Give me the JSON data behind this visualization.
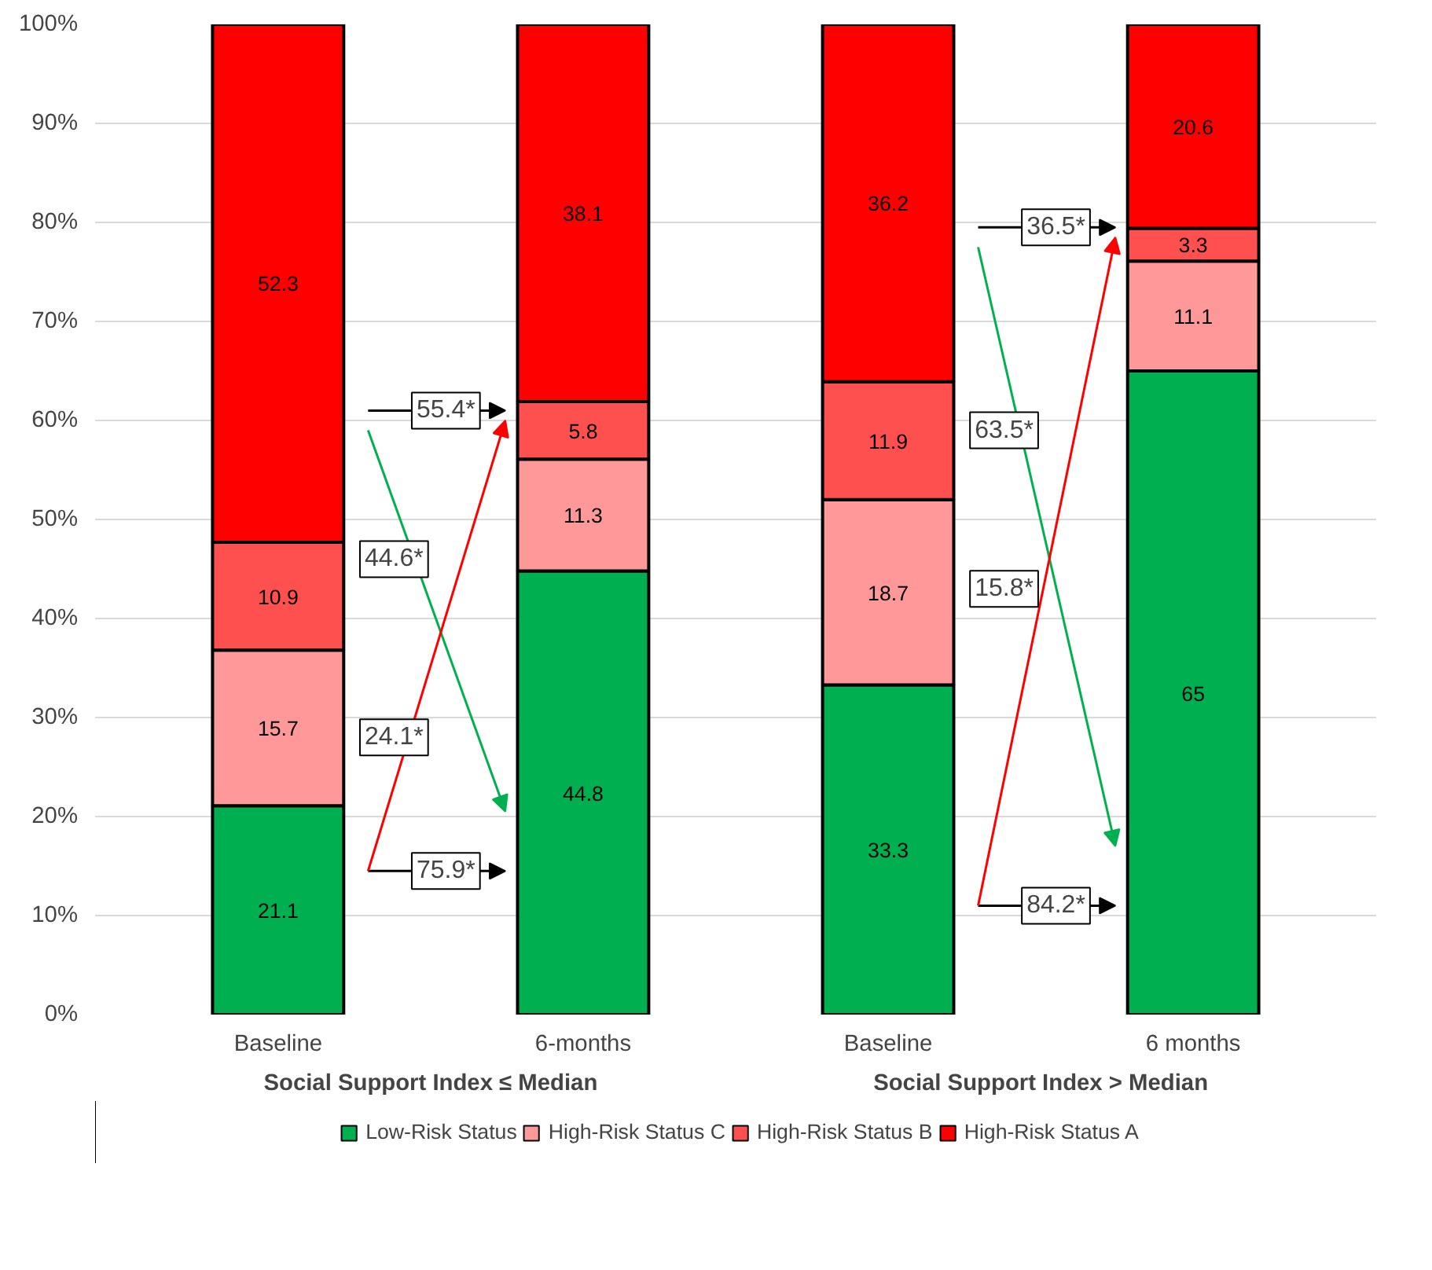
{
  "chart_data": {
    "type": "bar",
    "stacked": true,
    "categories": [
      "Baseline",
      "6-months",
      "Baseline",
      "6 months"
    ],
    "series": [
      {
        "name": "Low-Risk Status",
        "color": "#00b050",
        "values": [
          21.1,
          44.8,
          33.3,
          65
        ]
      },
      {
        "name": "High-Risk Status C",
        "color": "#ff9999",
        "values": [
          15.7,
          11.3,
          18.7,
          11.1
        ]
      },
      {
        "name": "High-Risk Status B",
        "color": "#ff5050",
        "values": [
          10.9,
          5.8,
          11.9,
          3.3
        ]
      },
      {
        "name": "High-Risk Status A",
        "color": "#ff0000",
        "values": [
          52.3,
          38.1,
          36.2,
          20.6
        ]
      }
    ],
    "ylim": [
      0,
      100
    ],
    "yticks": [
      {
        "value": 0,
        "label": "0%"
      },
      {
        "value": 10,
        "label": "10%"
      },
      {
        "value": 20,
        "label": "20%"
      },
      {
        "value": 30,
        "label": "30%"
      },
      {
        "value": 40,
        "label": "40%"
      },
      {
        "value": 50,
        "label": "50%"
      },
      {
        "value": 60,
        "label": "60%"
      },
      {
        "value": 70,
        "label": "70%"
      },
      {
        "value": 80,
        "label": "80%"
      },
      {
        "value": 90,
        "label": "90%"
      },
      {
        "value": 100,
        "label": "100%"
      }
    ],
    "grid": "y",
    "legend": "bottom",
    "data_labels": true,
    "annotations": [
      "Social Support Index ≤ Median",
      "Social Support Index > Median",
      {
        "text": "55.4*",
        "y": 61
      },
      {
        "text": "44.6*",
        "y": 46
      },
      {
        "text": "24.1*",
        "y": 28
      },
      {
        "text": "75.9*",
        "y": 14.5
      },
      {
        "text": "36.5*",
        "y": 79.5
      },
      {
        "text": "63.5*",
        "y": 59
      },
      {
        "text": "15.8*",
        "y": 43
      },
      {
        "text": "84.2*",
        "y": 11
      }
    ]
  }
}
